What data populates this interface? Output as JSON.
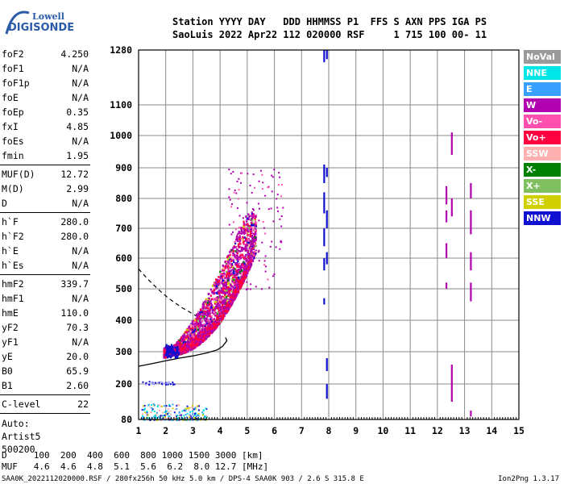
{
  "logo": {
    "brand_top": "Lowell",
    "brand_bottom": "DIGISONDE"
  },
  "header": {
    "line1": "Station YYYY DAY   DDD HHMMSS P1  FFS S AXN PPS IGA PS",
    "line2": "SaoLuis 2022 Apr22 112 020000 RSF     1 715 100 00- 11"
  },
  "params": {
    "group1": [
      {
        "label": "foF2",
        "value": "4.250"
      },
      {
        "label": "foF1",
        "value": "N/A"
      },
      {
        "label": "foF1p",
        "value": "N/A"
      },
      {
        "label": "foE",
        "value": "N/A"
      },
      {
        "label": "foEp",
        "value": "0.35"
      },
      {
        "label": "fxI",
        "value": "4.85"
      },
      {
        "label": "foEs",
        "value": "N/A"
      },
      {
        "label": "fmin",
        "value": "1.95"
      }
    ],
    "group2": [
      {
        "label": "MUF(D)",
        "value": "12.72"
      },
      {
        "label": "M(D)",
        "value": "2.99"
      },
      {
        "label": "D",
        "value": "N/A"
      }
    ],
    "group3": [
      {
        "label": "h`F",
        "value": "280.0"
      },
      {
        "label": "h`F2",
        "value": "280.0"
      },
      {
        "label": "h`E",
        "value": "N/A"
      },
      {
        "label": "h`Es",
        "value": "N/A"
      }
    ],
    "group4": [
      {
        "label": "hmF2",
        "value": "339.7"
      },
      {
        "label": "hmF1",
        "value": "N/A"
      },
      {
        "label": "hmE",
        "value": "110.0"
      },
      {
        "label": "yF2",
        "value": "70.3"
      },
      {
        "label": "yF1",
        "value": "N/A"
      },
      {
        "label": "yE",
        "value": "20.0"
      },
      {
        "label": "B0",
        "value": "65.9"
      },
      {
        "label": "B1",
        "value": "2.60"
      }
    ],
    "group5": [
      {
        "label": "C-level",
        "value": "22"
      }
    ],
    "auto": [
      "Auto:",
      "Artist5",
      "500200"
    ]
  },
  "legend": [
    {
      "label": "NoVal",
      "color": "#9a9a9a"
    },
    {
      "label": "NNE",
      "color": "#00e5e5"
    },
    {
      "label": "E",
      "color": "#3aa0ff"
    },
    {
      "label": "W",
      "color": "#b000b0"
    },
    {
      "label": "Vo-",
      "color": "#ff50b0"
    },
    {
      "label": "Vo+",
      "color": "#ff0040"
    },
    {
      "label": "SSW",
      "color": "#ffb0b0"
    },
    {
      "label": "X-",
      "color": "#008000"
    },
    {
      "label": "X+",
      "color": "#80c060"
    },
    {
      "label": "SSE",
      "color": "#d0d000"
    },
    {
      "label": "NNW",
      "color": "#1010d0"
    }
  ],
  "bottom": {
    "line1": "D     100  200  400  600  800 1000 1500 3000 [km]",
    "line2": "MUF   4.6  4.6  4.8  5.1  5.6  6.2  8.0 12.7 [MHz]"
  },
  "footer": {
    "left": "SAA0K_2022112020000.RSF / 280fx256h 50 kHz 5.0 km / DPS-4 SAA0K 903 / 2.6 S 315.8 E",
    "right": "Ion2Png 1.3.17"
  },
  "chart_data": {
    "type": "scatter",
    "xlim": [
      1,
      15
    ],
    "ylim": [
      80,
      1280
    ],
    "x_ticks": [
      "1",
      "2",
      "3",
      "4",
      "5",
      "6",
      "7",
      "8",
      "9",
      "10",
      "11",
      "12",
      "13",
      "14",
      "15"
    ],
    "y_ticks": [
      "80",
      "200",
      "300",
      "400",
      "500",
      "600",
      "700",
      "800",
      "900",
      "1000",
      "1100",
      "1280"
    ],
    "grid": true,
    "main_trace_colors": [
      "#b000b0",
      "#ff0040",
      "#ff50b0",
      "#1010d0",
      "#d0d000",
      "#008000",
      "#80c060",
      "#ffb0b0"
    ],
    "profile_solid": [
      [
        1.0,
        255
      ],
      [
        1.5,
        263
      ],
      [
        2.0,
        272
      ],
      [
        2.5,
        280
      ],
      [
        3.0,
        287
      ],
      [
        3.5,
        296
      ],
      [
        3.9,
        306
      ],
      [
        4.1,
        318
      ],
      [
        4.25,
        335
      ],
      [
        4.2,
        345
      ]
    ],
    "profile_dashed": [
      [
        1.0,
        565
      ],
      [
        1.3,
        535
      ],
      [
        1.7,
        500
      ],
      [
        2.1,
        470
      ],
      [
        2.6,
        440
      ],
      [
        3.0,
        420
      ],
      [
        3.3,
        405
      ]
    ],
    "vertical_streaks": [
      {
        "x": 7.8,
        "segments": [
          [
            450,
            470
          ],
          [
            560,
            600
          ],
          [
            640,
            700
          ],
          [
            750,
            820
          ],
          [
            850,
            910
          ],
          [
            1240,
            1280
          ]
        ],
        "color": "#1010d0"
      },
      {
        "x": 7.9,
        "segments": [
          [
            150,
            200
          ],
          [
            240,
            280
          ],
          [
            580,
            620
          ],
          [
            700,
            760
          ],
          [
            870,
            900
          ],
          [
            1250,
            1280
          ]
        ],
        "color": "#1010d0"
      },
      {
        "x": 12.3,
        "segments": [
          [
            500,
            520
          ],
          [
            600,
            650
          ],
          [
            720,
            760
          ],
          [
            780,
            840
          ]
        ],
        "color": "#b000b0"
      },
      {
        "x": 12.5,
        "segments": [
          [
            140,
            260
          ],
          [
            940,
            1010
          ],
          [
            740,
            800
          ]
        ],
        "color": "#b000b0"
      },
      {
        "x": 13.2,
        "segments": [
          [
            460,
            520
          ],
          [
            560,
            620
          ],
          [
            680,
            760
          ],
          [
            800,
            850
          ],
          [
            90,
            110
          ]
        ],
        "color": "#b000b0"
      }
    ],
    "es_band": {
      "x_range": [
        1.1,
        3.5
      ],
      "y_range": [
        80,
        140
      ]
    }
  }
}
